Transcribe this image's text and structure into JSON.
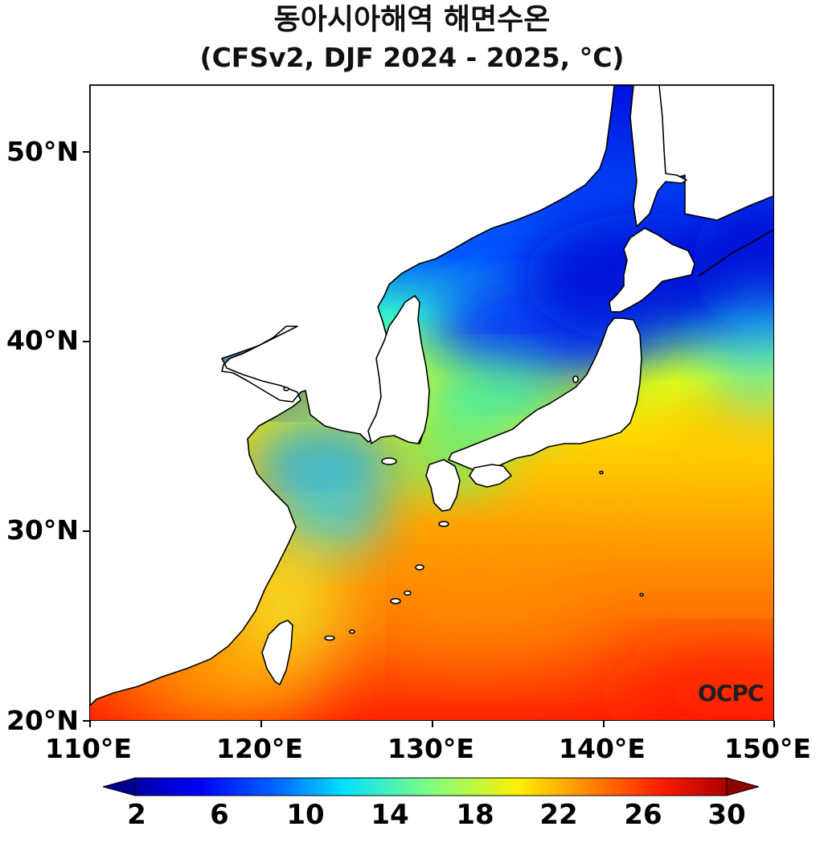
{
  "title": {
    "line1": "동아시아해역 해면수온",
    "line2": "(CFSv2, DJF 2024 - 2025, °C)"
  },
  "map": {
    "lon_range": [
      110,
      150
    ],
    "lat_range": [
      20,
      53.5
    ],
    "lon_ticks": [
      "110°E",
      "120°E",
      "130°E",
      "140°E",
      "150°E"
    ],
    "lat_ticks": [
      "20°N",
      "30°N",
      "40°N",
      "50°N"
    ],
    "logo_text": "OCPC",
    "variable": "sea surface temperature",
    "land_color": "#ffffff",
    "coastline_color": "#000000"
  },
  "colorbar": {
    "min": 2,
    "max": 30,
    "tick_labels": [
      "2",
      "6",
      "10",
      "14",
      "18",
      "22",
      "26",
      "30"
    ],
    "tick_values": [
      2,
      6,
      10,
      14,
      18,
      22,
      26,
      30
    ],
    "extend": "both",
    "colormap": "jet",
    "low_color": "#00008f",
    "high_color": "#8f0000"
  }
}
